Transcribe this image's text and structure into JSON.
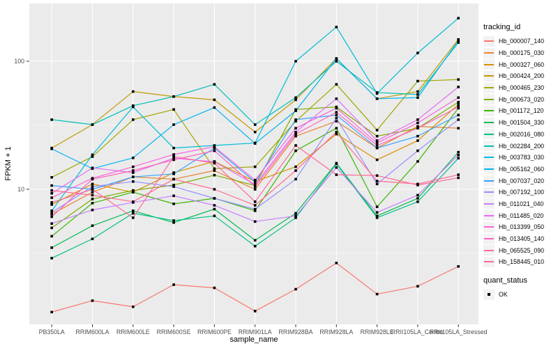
{
  "chart_data": {
    "type": "line",
    "title": "",
    "xlabel": "sample_name",
    "ylabel": "FPKM + 1",
    "x_categories": [
      "PB350LA",
      "RRIM600LA",
      "RRIM600LE",
      "RRIM600SE",
      "RRIM600PE",
      "RRIM901LA",
      "RRIM928BA",
      "RRIM928LA",
      "RRIM928LE",
      "RRII105LA_Control",
      "RRII105LA_Stressed"
    ],
    "y_scale": "log10",
    "ylim": [
      0.88,
      285
    ],
    "y_ticks": [
      {
        "value": 10,
        "label": "10"
      },
      {
        "value": 100,
        "label": "100"
      }
    ],
    "y_minor_ticks": [
      3.162,
      31.623,
      316.23
    ],
    "grid": "white major/minor horizontal, white vertical at each category",
    "legend_title": "tracking_id",
    "legend2": {
      "title": "quant_status",
      "items": [
        {
          "label": "OK",
          "marker": "black-square"
        }
      ]
    },
    "marker": {
      "shape": "square",
      "color": "#000000",
      "size": 3.6
    },
    "series": [
      {
        "name": "Hb_000007_140",
        "color": "#F8766D",
        "values": [
          1.1,
          1.35,
          1.21,
          1.8,
          1.7,
          1.12,
          1.66,
          2.66,
          1.52,
          1.75,
          2.5
        ]
      },
      {
        "name": "Hb_000175_030",
        "color": "#EA8331",
        "values": [
          6.4,
          9.5,
          12.5,
          12.0,
          14.0,
          10.0,
          26,
          34,
          21,
          31,
          30
        ]
      },
      {
        "name": "Hb_000327_060",
        "color": "#D89000",
        "values": [
          7.6,
          11.0,
          9.5,
          13.5,
          16.5,
          11.5,
          15,
          27,
          17,
          24,
          46
        ]
      },
      {
        "name": "Hb_000424_200",
        "color": "#C09B00",
        "values": [
          21,
          32,
          58,
          53,
          50,
          28,
          50,
          105,
          51,
          58,
          148
        ]
      },
      {
        "name": "Hb_000465_230",
        "color": "#A3A500",
        "values": [
          12.4,
          18,
          35,
          42,
          14.5,
          15,
          34,
          66,
          29,
          70,
          72
        ]
      },
      {
        "name": "Hb_000673_020",
        "color": "#7CAE00",
        "values": [
          5.0,
          8.4,
          9.8,
          10.8,
          12.9,
          10.7,
          42,
          44,
          26,
          30,
          48
        ]
      },
      {
        "name": "Hb_001172_120",
        "color": "#39B600",
        "values": [
          4.3,
          7.8,
          9.5,
          7.7,
          8.5,
          6.8,
          20,
          30,
          7.3,
          16.5,
          43
        ]
      },
      {
        "name": "Hb_001504_330",
        "color": "#00BB4E",
        "values": [
          3.5,
          5.2,
          6.8,
          5.5,
          7.0,
          4.0,
          6.5,
          16,
          6.2,
          8.5,
          19.5
        ]
      },
      {
        "name": "Hb_002016_080",
        "color": "#00C087",
        "values": [
          2.9,
          4.1,
          6.5,
          5.7,
          6.2,
          3.6,
          6.0,
          15.8,
          6.0,
          8.0,
          17.5
        ]
      },
      {
        "name": "Hb_002284_200",
        "color": "#00C0B8",
        "values": [
          35,
          32,
          45,
          53,
          66,
          32,
          52,
          100,
          57,
          55,
          140
        ]
      },
      {
        "name": "Hb_003783_030",
        "color": "#00BCD8",
        "values": [
          6.8,
          18.6,
          44,
          21,
          22,
          23,
          100,
          185,
          56,
          116,
          217
        ]
      },
      {
        "name": "Hb_005162_060",
        "color": "#00B3F0",
        "values": [
          20.7,
          14.5,
          17.6,
          32,
          43.5,
          22.8,
          41,
          105,
          51,
          52,
          145
        ]
      },
      {
        "name": "Hb_007037_020",
        "color": "#35A2FF",
        "values": [
          10.7,
          10,
          12.5,
          13.2,
          21,
          11.4,
          35,
          38,
          21,
          26,
          38
        ]
      },
      {
        "name": "Hb_007192_100",
        "color": "#9590FF",
        "values": [
          6.6,
          10.5,
          11.5,
          10.5,
          8.5,
          7.0,
          12,
          36,
          11,
          20,
          35
        ]
      },
      {
        "name": "Hb_011021_040",
        "color": "#C77CFF",
        "values": [
          5.4,
          6.9,
          7.9,
          8.9,
          7.5,
          5.6,
          6.2,
          14.8,
          6.6,
          9.0,
          18.5
        ]
      },
      {
        "name": "Hb_011485_020",
        "color": "#E76BF3",
        "values": [
          9.3,
          14.7,
          13.5,
          17.5,
          16.4,
          10.9,
          28,
          51,
          24,
          35,
          63
        ]
      },
      {
        "name": "Hb_013399_050",
        "color": "#FA62DB",
        "values": [
          8.6,
          12.2,
          15.0,
          18.7,
          21.5,
          11.8,
          30,
          43,
          23,
          33,
          52
        ]
      },
      {
        "name": "Hb_013405_140",
        "color": "#FF62BC",
        "values": [
          6.1,
          12.0,
          14.0,
          17.0,
          20.0,
          10.5,
          27,
          40,
          22,
          30,
          44
        ]
      },
      {
        "name": "Hb_065525_090",
        "color": "#FF6A98",
        "values": [
          7.9,
          10.0,
          6.0,
          18.0,
          16.0,
          8.0,
          22,
          13,
          12.8,
          10.8,
          12.3
        ]
      },
      {
        "name": "Hb_158445_010",
        "color": "#FF6C91",
        "values": [
          9.8,
          9.0,
          8.0,
          12.0,
          10.0,
          7.5,
          14,
          28,
          11.6,
          11.0,
          13.0
        ]
      }
    ],
    "style": {
      "panel_bg": "#EBEBEB",
      "grid_color": "#FFFFFF",
      "axis_text_color": "#4D4D4D",
      "tick_color": "#333333",
      "legend_key_bg": "#F2F2F2",
      "point_color": "#000000"
    }
  }
}
